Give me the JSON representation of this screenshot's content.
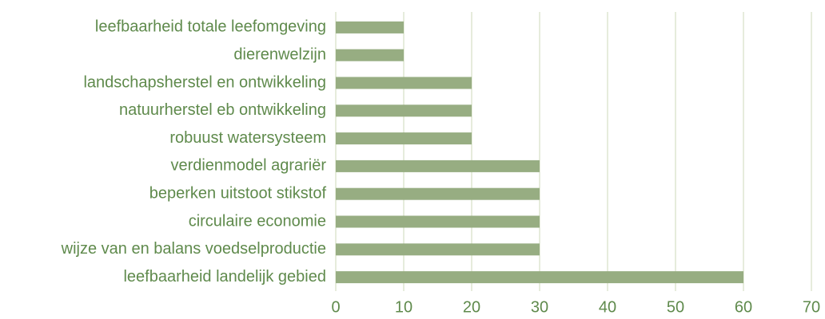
{
  "chart_data": {
    "type": "bar",
    "orientation": "horizontal",
    "categories": [
      "leefbaarheid totale leefomgeving",
      "dierenwelzijn",
      "landschapsherstel en ontwikkeling",
      "natuurherstel eb ontwikkeling",
      "robuust watersysteem",
      "verdienmodel agrariër",
      "beperken uitstoot stikstof",
      "circulaire economie",
      "wijze van en balans voedselproductie",
      "leefbaarheid landelijk gebied"
    ],
    "values": [
      10,
      10,
      20,
      20,
      20,
      30,
      30,
      30,
      30,
      60
    ],
    "color": "#97ad82",
    "xlim": [
      0,
      70
    ],
    "xticks": [
      0,
      10,
      20,
      30,
      40,
      50,
      60,
      70
    ],
    "grid": true
  }
}
